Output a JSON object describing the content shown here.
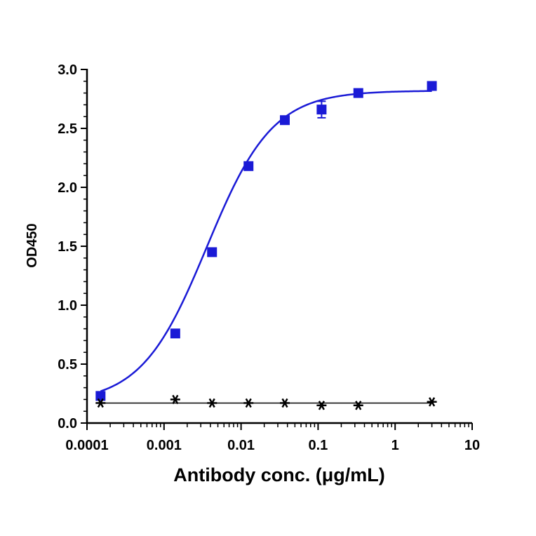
{
  "chart_data": {
    "type": "scatter",
    "xlabel": "Antibody conc. (μg/mL)",
    "ylabel": "OD450",
    "xscale": "log",
    "xlim": [
      0.0001,
      10
    ],
    "ylim": [
      0,
      3.0
    ],
    "x_ticks": [
      0.0001,
      0.001,
      0.01,
      0.1,
      1,
      10
    ],
    "x_tick_labels": [
      "0.0001",
      "0.001",
      "0.01",
      "0.1",
      "1",
      "10"
    ],
    "y_ticks": [
      0,
      0.5,
      1.0,
      1.5,
      2.0,
      2.5,
      3.0
    ],
    "y_tick_labels": [
      "0.0",
      "0.5",
      "1.0",
      "1.5",
      "2.0",
      "2.5",
      "3.0"
    ],
    "grid": false,
    "series": [
      {
        "marker": "square",
        "color": "#1a1ad6",
        "fit": "4PL sigmoidal",
        "x": [
          0.00015,
          0.0014,
          0.0042,
          0.0125,
          0.037,
          0.111,
          0.333,
          3.0
        ],
        "y": [
          0.23,
          0.76,
          1.45,
          2.18,
          2.57,
          2.66,
          2.8,
          2.86
        ],
        "err": [
          0,
          0.02,
          0.02,
          0.02,
          0.02,
          0.07,
          0.02,
          0.03
        ]
      },
      {
        "marker": "asterisk",
        "color": "#000000",
        "fit": "flat line",
        "x": [
          0.00015,
          0.0014,
          0.0042,
          0.0125,
          0.037,
          0.111,
          0.333,
          3.0
        ],
        "y": [
          0.17,
          0.2,
          0.17,
          0.17,
          0.17,
          0.15,
          0.15,
          0.18
        ]
      }
    ]
  }
}
